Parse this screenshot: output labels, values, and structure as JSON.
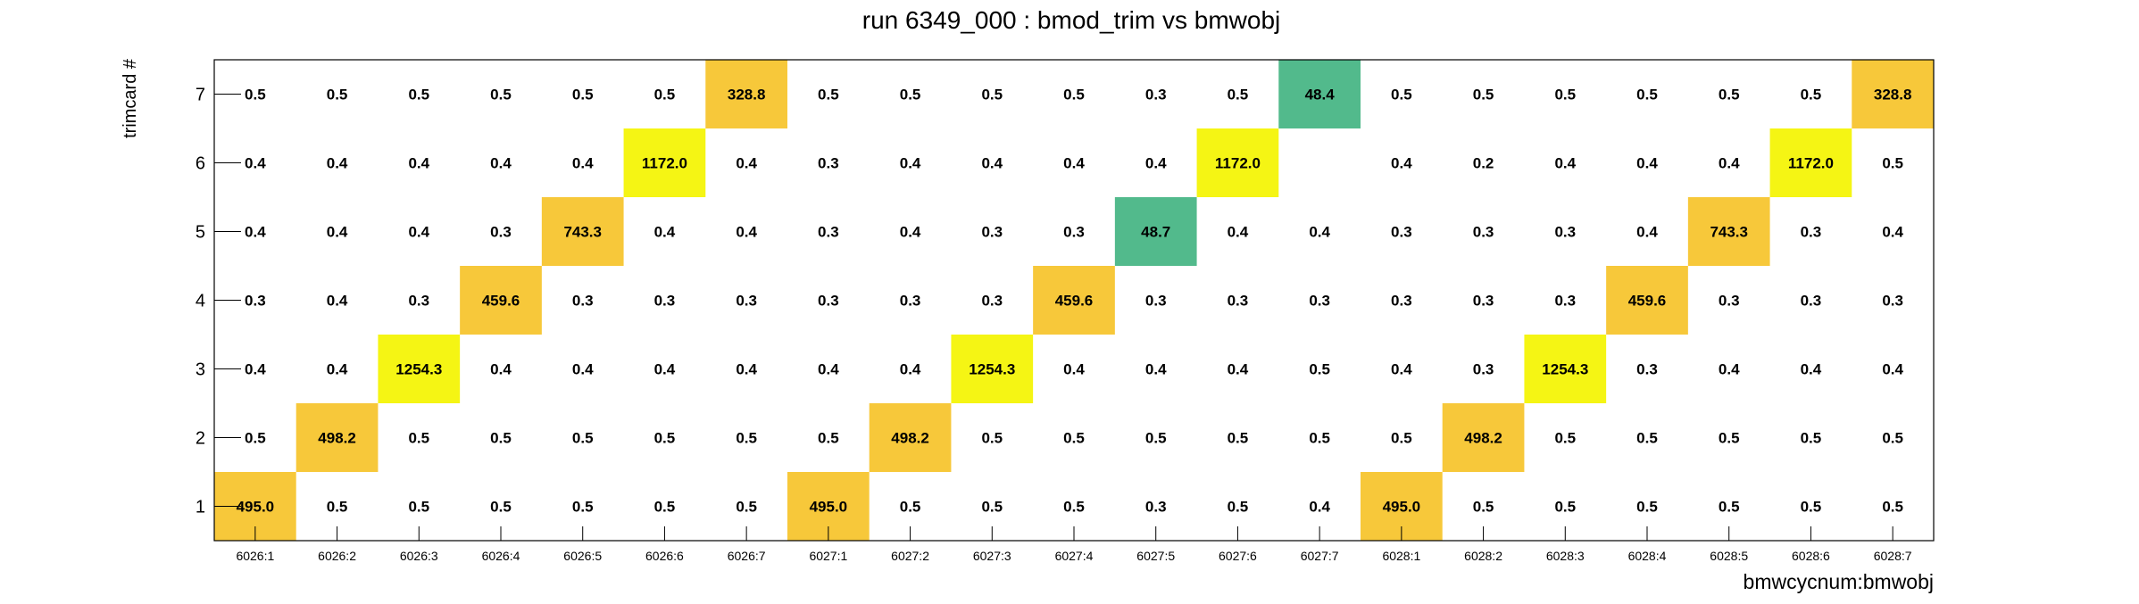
{
  "chart_data": {
    "type": "heatmap",
    "title": "run 6349_000 : bmod_trim vs bmwobj",
    "xlabel": "bmwcycnum:bmwobj",
    "ylabel": "trimcard #",
    "x_categories": [
      "6026:1",
      "6026:2",
      "6026:3",
      "6026:4",
      "6026:5",
      "6026:6",
      "6026:7",
      "6027:1",
      "6027:2",
      "6027:3",
      "6027:4",
      "6027:5",
      "6027:6",
      "6027:7",
      "6028:1",
      "6028:2",
      "6028:3",
      "6028:4",
      "6028:5",
      "6028:6",
      "6028:7"
    ],
    "y_categories": [
      "1",
      "2",
      "3",
      "4",
      "5",
      "6",
      "7"
    ],
    "values": [
      [
        "495.0",
        "0.5",
        "0.5",
        "0.5",
        "0.5",
        "0.5",
        "0.5",
        "495.0",
        "0.5",
        "0.5",
        "0.5",
        "0.3",
        "0.5",
        "0.4",
        "495.0",
        "0.5",
        "0.5",
        "0.5",
        "0.5",
        "0.5",
        "0.5"
      ],
      [
        "0.5",
        "498.2",
        "0.5",
        "0.5",
        "0.5",
        "0.5",
        "0.5",
        "0.5",
        "498.2",
        "0.5",
        "0.5",
        "0.5",
        "0.5",
        "0.5",
        "0.5",
        "498.2",
        "0.5",
        "0.5",
        "0.5",
        "0.5",
        "0.5"
      ],
      [
        "0.4",
        "0.4",
        "1254.3",
        "0.4",
        "0.4",
        "0.4",
        "0.4",
        "0.4",
        "0.4",
        "1254.3",
        "0.4",
        "0.4",
        "0.4",
        "0.5",
        "0.4",
        "0.3",
        "1254.3",
        "0.3",
        "0.4",
        "0.4",
        "0.4"
      ],
      [
        "0.3",
        "0.4",
        "0.3",
        "459.6",
        "0.3",
        "0.3",
        "0.3",
        "0.3",
        "0.3",
        "0.3",
        "459.6",
        "0.3",
        "0.3",
        "0.3",
        "0.3",
        "0.3",
        "0.3",
        "459.6",
        "0.3",
        "0.3",
        "0.3"
      ],
      [
        "0.4",
        "0.4",
        "0.4",
        "0.3",
        "743.3",
        "0.4",
        "0.4",
        "0.3",
        "0.4",
        "0.3",
        "0.3",
        "48.7",
        "0.4",
        "0.4",
        "0.3",
        "0.3",
        "0.3",
        "0.4",
        "743.3",
        "0.3",
        "0.4"
      ],
      [
        "0.4",
        "0.4",
        "0.4",
        "0.4",
        "0.4",
        "1172.0",
        "0.4",
        "0.3",
        "0.4",
        "0.4",
        "0.4",
        "0.4",
        "1172.0",
        "",
        "0.4",
        "0.2",
        "0.4",
        "0.4",
        "0.4",
        "1172.0",
        "0.5"
      ],
      [
        "0.5",
        "0.5",
        "0.5",
        "0.5",
        "0.5",
        "0.5",
        "328.8",
        "0.5",
        "0.5",
        "0.5",
        "0.5",
        "0.3",
        "0.5",
        "48.4",
        "0.5",
        "0.5",
        "0.5",
        "0.5",
        "0.5",
        "0.5",
        "328.8"
      ]
    ],
    "y_range": [
      0.5,
      7.5
    ],
    "grid": false,
    "legend": "none",
    "colors": {
      "high": "#f5f514",
      "mid": "#f7c83a",
      "low": "#52ba8c",
      "frame": "#000000"
    }
  }
}
